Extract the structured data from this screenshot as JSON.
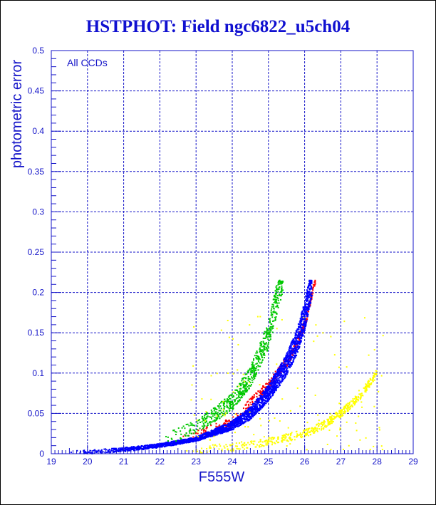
{
  "colors": {
    "title": "#1010d0",
    "axis": "#1414c8",
    "grid": "#1414c8",
    "points": [
      "#0000ff",
      "#ff0000",
      "#00c800",
      "#ffff00"
    ]
  },
  "chart_data": {
    "type": "scatter",
    "title": "HSTPHOT: Field ngc6822_u5ch04",
    "xlabel": "F555W",
    "ylabel": "photometric error",
    "annotation": "All CCDs",
    "xlim": [
      19,
      29
    ],
    "ylim": [
      0,
      0.5
    ],
    "xticks": [
      "19",
      "20",
      "21",
      "22",
      "23",
      "24",
      "25",
      "26",
      "27",
      "28",
      "29"
    ],
    "yticks": [
      "0",
      "0.05",
      "0.1",
      "0.15",
      "0.2",
      "0.25",
      "0.3",
      "0.35",
      "0.4",
      "0.45",
      "0.5"
    ],
    "grid": true,
    "series": [
      {
        "color": "#0000ff",
        "description_points": [
          [
            19.4,
            0.001
          ],
          [
            20.0,
            0.002
          ],
          [
            21.0,
            0.005
          ],
          [
            22.0,
            0.01
          ],
          [
            23.0,
            0.018
          ],
          [
            24.0,
            0.035
          ],
          [
            24.5,
            0.05
          ],
          [
            25.0,
            0.075
          ],
          [
            25.5,
            0.11
          ],
          [
            25.8,
            0.14
          ],
          [
            26.0,
            0.17
          ],
          [
            26.2,
            0.215
          ]
        ]
      },
      {
        "color": "#ff0000",
        "description_points": [
          [
            22.5,
            0.014
          ],
          [
            24.0,
            0.04
          ],
          [
            25.0,
            0.085
          ],
          [
            25.6,
            0.12
          ],
          [
            26.0,
            0.16
          ],
          [
            26.3,
            0.215
          ]
        ]
      },
      {
        "color": "#00c800",
        "description_points": [
          [
            22.0,
            0.012
          ],
          [
            23.0,
            0.03
          ],
          [
            24.0,
            0.06
          ],
          [
            24.5,
            0.09
          ],
          [
            25.0,
            0.14
          ],
          [
            25.4,
            0.215
          ]
        ]
      },
      {
        "color": "#ffff00",
        "description_points": [
          [
            22.5,
            0.003
          ],
          [
            24.0,
            0.008
          ],
          [
            25.0,
            0.015
          ],
          [
            26.0,
            0.025
          ],
          [
            26.5,
            0.035
          ],
          [
            27.0,
            0.05
          ],
          [
            27.5,
            0.07
          ],
          [
            28.0,
            0.1
          ]
        ]
      }
    ]
  }
}
